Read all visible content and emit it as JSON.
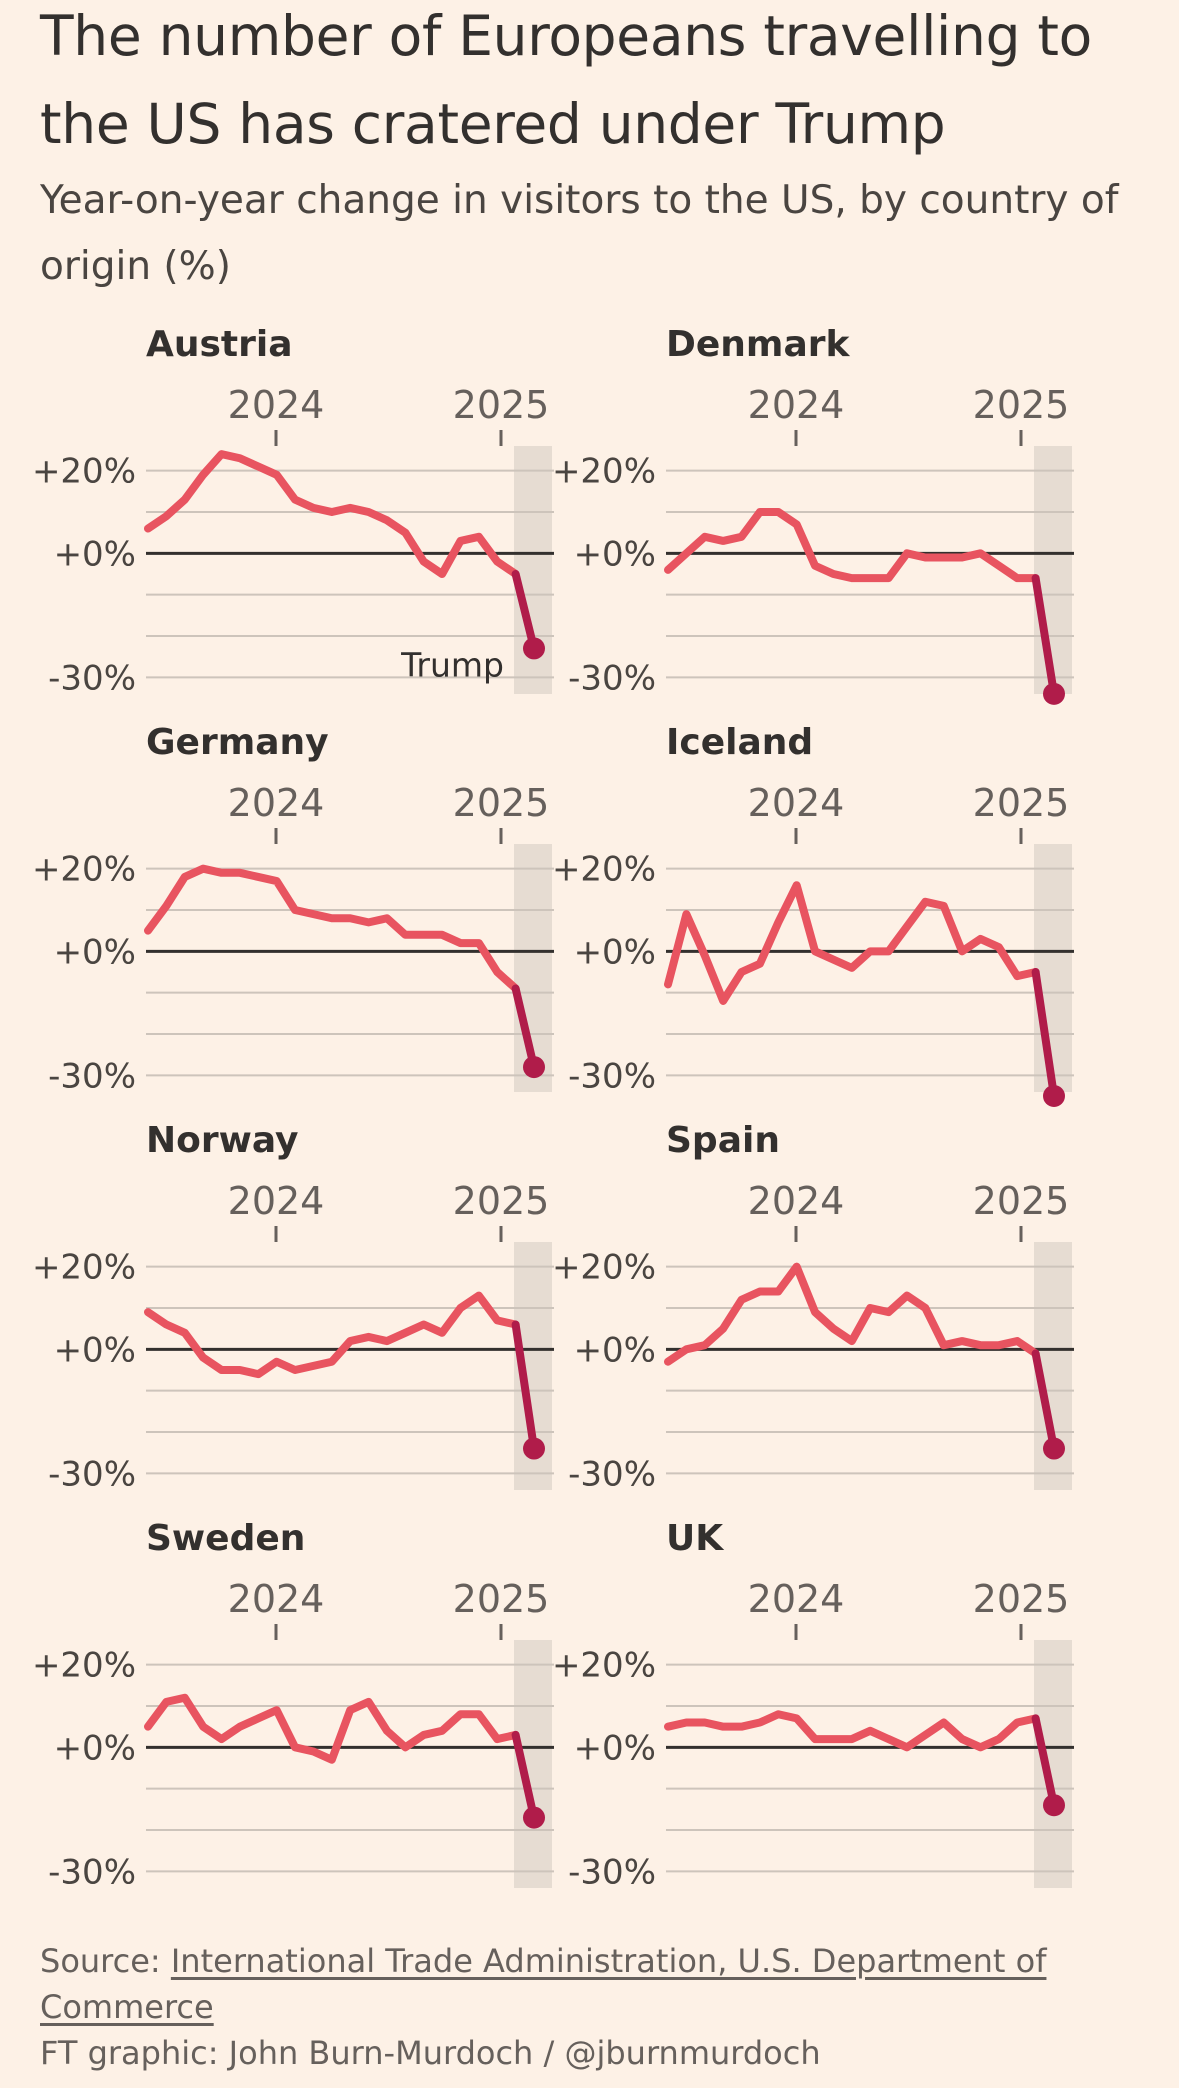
{
  "title": "The number of Europeans travelling to the US has cratered under Trump",
  "subtitle": "Year-on-year change in visitors to the US, by country of origin (%)",
  "colors": {
    "line": "#e85460",
    "trump_line": "#b01c4a",
    "shade": "#e6dcd2",
    "zero": "#33302e",
    "grid": "#cdc4bb",
    "background": "#fdf1e6"
  },
  "chart_data": {
    "type": "line",
    "layout": "small-multiples-4x2",
    "x_tick_labels": [
      "2024",
      "2025"
    ],
    "y_tick_labels": [
      "+20%",
      "+0%",
      "-30%"
    ],
    "ylim": [
      -35,
      25
    ],
    "annotation": "Trump",
    "shaded_region": "Trump presidency (2025 onward)",
    "panels": [
      {
        "name": "Austria",
        "values": [
          6,
          9,
          13,
          19,
          24,
          23,
          21,
          19,
          13,
          11,
          10,
          11,
          10,
          8,
          5,
          -2,
          -5,
          3,
          4,
          -2,
          -5,
          -23
        ]
      },
      {
        "name": "Denmark",
        "values": [
          -4,
          0,
          4,
          3,
          4,
          10,
          10,
          7,
          -3,
          -5,
          -6,
          -6,
          -6,
          0,
          -1,
          -1,
          -1,
          0,
          -3,
          -6,
          -6,
          -34
        ]
      },
      {
        "name": "Germany",
        "values": [
          5,
          11,
          18,
          20,
          19,
          19,
          18,
          17,
          10,
          9,
          8,
          8,
          7,
          8,
          4,
          4,
          4,
          2,
          2,
          -5,
          -9,
          -28
        ]
      },
      {
        "name": "Iceland",
        "values": [
          -8,
          9,
          -1,
          -12,
          -5,
          -3,
          7,
          16,
          0,
          -2,
          -4,
          0,
          0,
          6,
          12,
          11,
          0,
          3,
          1,
          -6,
          -5,
          -35
        ]
      },
      {
        "name": "Norway",
        "values": [
          9,
          6,
          4,
          -2,
          -5,
          -5,
          -6,
          -3,
          -5,
          -4,
          -3,
          2,
          3,
          2,
          4,
          6,
          4,
          10,
          13,
          7,
          6,
          -24
        ]
      },
      {
        "name": "Spain",
        "values": [
          -3,
          0,
          1,
          5,
          12,
          14,
          14,
          20,
          9,
          5,
          2,
          10,
          9,
          13,
          10,
          1,
          2,
          1,
          1,
          2,
          -1,
          -24
        ]
      },
      {
        "name": "Sweden",
        "values": [
          5,
          11,
          12,
          5,
          2,
          5,
          7,
          9,
          0,
          -1,
          -3,
          9,
          11,
          4,
          0,
          3,
          4,
          8,
          8,
          2,
          3,
          -17
        ]
      },
      {
        "name": "UK",
        "values": [
          5,
          6,
          6,
          5,
          5,
          6,
          8,
          7,
          2,
          2,
          2,
          4,
          2,
          0,
          3,
          6,
          2,
          0,
          2,
          6,
          7,
          -14
        ]
      }
    ]
  },
  "footer": {
    "source_prefix": "Source: ",
    "source_link": "International Trade Administration, U.S. Department of Commerce",
    "credit": "FT graphic: John Burn-Murdoch / @jburnmurdoch"
  }
}
